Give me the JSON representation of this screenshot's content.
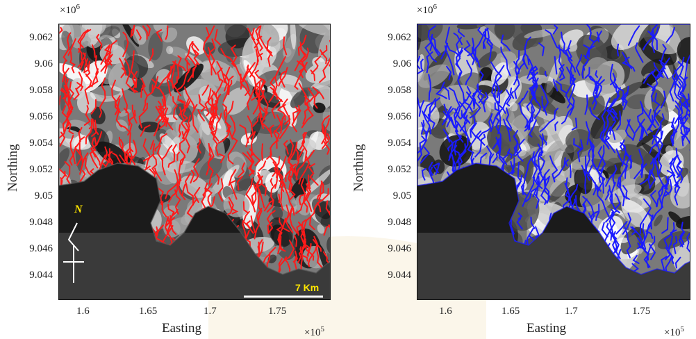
{
  "maps": [
    {
      "x_multiplier_base": "×10",
      "x_multiplier_exp": "5",
      "y_multiplier_base": "×10",
      "y_multiplier_exp": "6",
      "xlabel": "Easting",
      "ylabel": "Northing",
      "x_ticks": [
        "1.6",
        "1.65",
        "1.7",
        "1.75"
      ],
      "y_ticks": [
        "9.062",
        "9.06",
        "9.058",
        "9.056",
        "9.054",
        "9.052",
        "9.05",
        "9.048",
        "9.046",
        "9.044"
      ],
      "network_color": "#ff1a1a",
      "north_label": "N",
      "scale_bar_label": "7 Km"
    },
    {
      "x_multiplier_base": "×10",
      "x_multiplier_exp": "5",
      "y_multiplier_base": "×10",
      "y_multiplier_exp": "6",
      "xlabel": "Easting",
      "ylabel": "Northing",
      "x_ticks": [
        "1.6",
        "1.65",
        "1.7",
        "1.75"
      ],
      "y_ticks": [
        "9.062",
        "9.06",
        "9.058",
        "9.056",
        "9.054",
        "9.052",
        "9.05",
        "9.048",
        "9.046",
        "9.044"
      ],
      "network_color": "#1a1aff"
    }
  ],
  "colors": {
    "sea": "#1b1b1b",
    "shelf": "#3a3a3a",
    "terrain_dark": "#151515",
    "terrain_mid": "#7a7a7a",
    "terrain_light": "#cfcfcf",
    "annotation": "#ffe600"
  }
}
